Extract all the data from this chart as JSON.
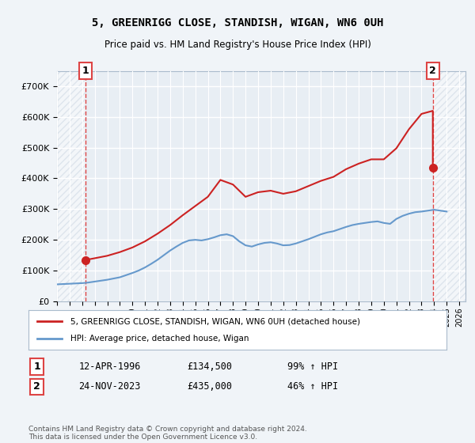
{
  "title": "5, GREENRIGG CLOSE, STANDISH, WIGAN, WN6 0UH",
  "subtitle": "Price paid vs. HM Land Registry's House Price Index (HPI)",
  "ylim": [
    0,
    750000
  ],
  "yticks": [
    0,
    100000,
    200000,
    300000,
    400000,
    500000,
    600000,
    700000
  ],
  "ytick_labels": [
    "£0",
    "£100K",
    "£200K",
    "£300K",
    "£400K",
    "£500K",
    "£600K",
    "£700K"
  ],
  "xlim_start": 1994.0,
  "xlim_end": 2026.5,
  "background_color": "#f0f4f8",
  "plot_bg_color": "#e8eef4",
  "hatch_color": "#c8d4e0",
  "grid_color": "#ffffff",
  "sale1_date": 1996.28,
  "sale1_price": 134500,
  "sale2_date": 2023.9,
  "sale2_price": 435000,
  "sale1_label": "1",
  "sale2_label": "2",
  "hpi_line_color": "#6699cc",
  "price_line_color": "#cc2222",
  "dashed_line_color": "#dd4444",
  "legend_label1": "5, GREENRIGG CLOSE, STANDISH, WIGAN, WN6 0UH (detached house)",
  "legend_label2": "HPI: Average price, detached house, Wigan",
  "table_row1": [
    "1",
    "12-APR-1996",
    "£134,500",
    "99% ↑ HPI"
  ],
  "table_row2": [
    "2",
    "24-NOV-2023",
    "£435,000",
    "46% ↑ HPI"
  ],
  "footer": "Contains HM Land Registry data © Crown copyright and database right 2024.\nThis data is licensed under the Open Government Licence v3.0.",
  "hpi_data_x": [
    1994.0,
    1995.0,
    1995.5,
    1996.0,
    1996.28,
    1996.5,
    1997.0,
    1997.5,
    1998.0,
    1998.5,
    1999.0,
    1999.5,
    2000.0,
    2000.5,
    2001.0,
    2001.5,
    2002.0,
    2002.5,
    2003.0,
    2003.5,
    2004.0,
    2004.5,
    2005.0,
    2005.5,
    2006.0,
    2006.5,
    2007.0,
    2007.5,
    2008.0,
    2008.5,
    2009.0,
    2009.5,
    2010.0,
    2010.5,
    2011.0,
    2011.5,
    2012.0,
    2012.5,
    2013.0,
    2013.5,
    2014.0,
    2014.5,
    2015.0,
    2015.5,
    2016.0,
    2016.5,
    2017.0,
    2017.5,
    2018.0,
    2018.5,
    2019.0,
    2019.5,
    2020.0,
    2020.5,
    2021.0,
    2021.5,
    2022.0,
    2022.5,
    2023.0,
    2023.5,
    2024.0,
    2024.5,
    2025.0
  ],
  "hpi_data_y": [
    55000,
    57000,
    58000,
    59000,
    60000,
    61000,
    64000,
    67000,
    70000,
    74000,
    78000,
    85000,
    92000,
    100000,
    110000,
    122000,
    135000,
    150000,
    165000,
    178000,
    190000,
    198000,
    200000,
    198000,
    202000,
    208000,
    215000,
    218000,
    212000,
    195000,
    182000,
    178000,
    185000,
    190000,
    192000,
    188000,
    182000,
    183000,
    188000,
    195000,
    202000,
    210000,
    218000,
    224000,
    228000,
    235000,
    242000,
    248000,
    252000,
    255000,
    258000,
    260000,
    255000,
    252000,
    268000,
    278000,
    285000,
    290000,
    292000,
    295000,
    298000,
    295000,
    292000
  ],
  "price_data_x": [
    1996.28,
    1996.28,
    1997.0,
    1998.0,
    1999.0,
    2000.0,
    2001.0,
    2002.0,
    2003.0,
    2004.0,
    2005.0,
    2006.0,
    2007.0,
    2008.0,
    2009.0,
    2010.0,
    2011.0,
    2012.0,
    2013.0,
    2014.0,
    2015.0,
    2016.0,
    2017.0,
    2018.0,
    2019.0,
    2020.0,
    2021.0,
    2022.0,
    2023.0,
    2023.9,
    2023.9
  ],
  "price_data_y": [
    134500,
    134500,
    140000,
    148000,
    160000,
    175000,
    195000,
    220000,
    248000,
    280000,
    310000,
    340000,
    395000,
    380000,
    340000,
    355000,
    360000,
    350000,
    358000,
    375000,
    392000,
    405000,
    430000,
    448000,
    462000,
    462000,
    498000,
    560000,
    610000,
    620000,
    435000
  ]
}
